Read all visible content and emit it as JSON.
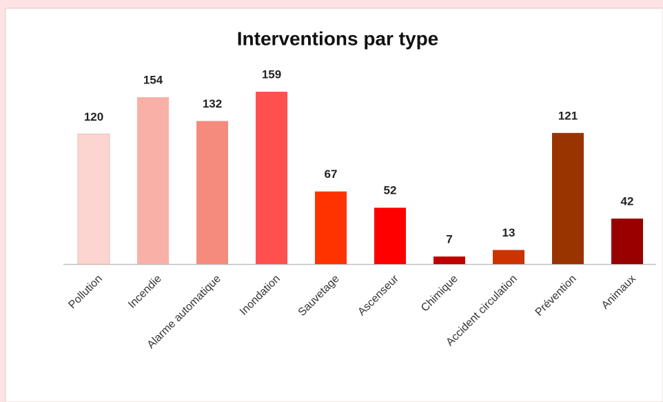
{
  "chart_data": {
    "type": "bar",
    "title": "Interventions par type",
    "categories": [
      "Pollution",
      "Incendie",
      "Alarme automatique",
      "Inondation",
      "Sauvetage",
      "Ascenseur",
      "Chimique",
      "Accident circulation",
      "Prévention",
      "Animaux"
    ],
    "values": [
      120,
      154,
      132,
      159,
      67,
      52,
      7,
      13,
      121,
      42
    ],
    "colors": [
      "#fcd5d0",
      "#f9b0a6",
      "#f58b7c",
      "#ff5050",
      "#ff3300",
      "#ff0000",
      "#c00000",
      "#cc3300",
      "#993300",
      "#990000"
    ]
  }
}
